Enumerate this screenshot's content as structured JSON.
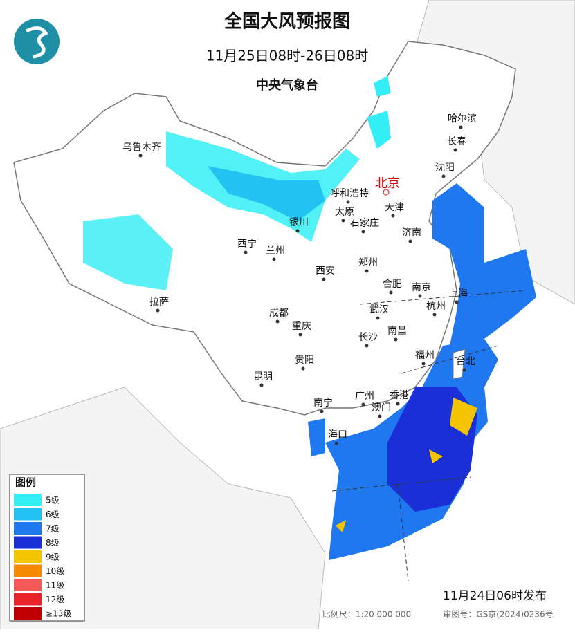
{
  "header": {
    "title": "全国大风预报图",
    "period": "11月25日08时-26日08时",
    "issuer": "中央气象台"
  },
  "cities": [
    {
      "label": "乌鲁木齐"
    },
    {
      "label": "呼和浩特"
    },
    {
      "label": "北京",
      "capital": true
    },
    {
      "label": "哈尔滨"
    },
    {
      "label": "长春"
    },
    {
      "label": "沈阳"
    },
    {
      "label": "天津"
    },
    {
      "label": "太原"
    },
    {
      "label": "石家庄"
    },
    {
      "label": "银川"
    },
    {
      "label": "济南"
    },
    {
      "label": "西宁"
    },
    {
      "label": "兰州"
    },
    {
      "label": "郑州"
    },
    {
      "label": "西安"
    },
    {
      "label": "合肥"
    },
    {
      "label": "南京"
    },
    {
      "label": "上海"
    },
    {
      "label": "杭州"
    },
    {
      "label": "拉萨"
    },
    {
      "label": "成都"
    },
    {
      "label": "武汉"
    },
    {
      "label": "重庆"
    },
    {
      "label": "南昌"
    },
    {
      "label": "长沙"
    },
    {
      "label": "福州"
    },
    {
      "label": "台北"
    },
    {
      "label": "贵阳"
    },
    {
      "label": "昆明"
    },
    {
      "label": "南宁"
    },
    {
      "label": "广州"
    },
    {
      "label": "香港"
    },
    {
      "label": "澳门"
    },
    {
      "label": "海口"
    }
  ],
  "legend": {
    "title": "图例",
    "items": [
      {
        "label": "5级",
        "color": "#33eef5"
      },
      {
        "label": "6级",
        "color": "#22c3f2"
      },
      {
        "label": "7级",
        "color": "#1f78f0"
      },
      {
        "label": "8级",
        "color": "#1a2fd6"
      },
      {
        "label": "9级",
        "color": "#f5c400"
      },
      {
        "label": "10级",
        "color": "#f58a00"
      },
      {
        "label": "11级",
        "color": "#f55a5a"
      },
      {
        "label": "12级",
        "color": "#e8262a"
      },
      {
        "label": "≥13级",
        "color": "#c00000"
      }
    ]
  },
  "footer": {
    "published": "11月24日06时发布",
    "scale": "比例尺：1:20 000 000",
    "approval": "审图号：GS京(2024)0236号"
  }
}
